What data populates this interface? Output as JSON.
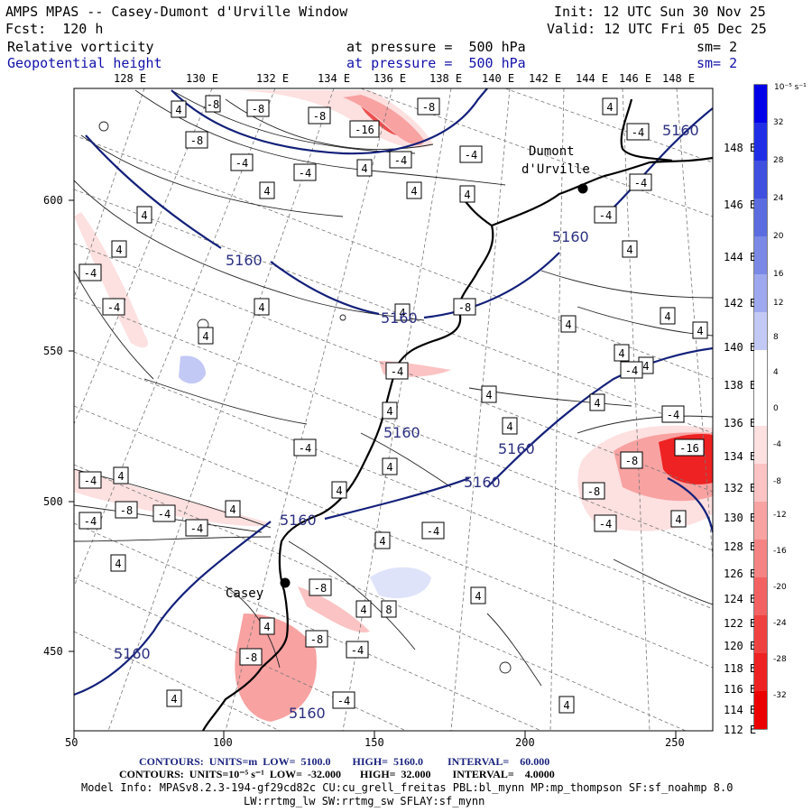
{
  "header": {
    "title": "AMPS MPAS -- Casey-Dumont d'Urville Window",
    "forecast": "Fcst:  120 h",
    "init": "Init: 12 UTC Sun 30 Nov 25",
    "valid": "Valid: 12 UTC Fri 05 Dec 25",
    "field1_name": "Relative vorticity",
    "field1_level": "at pressure =  500 hPa",
    "field1_sm": "sm= 2",
    "field2_name": "Geopotential height",
    "field2_level": "at pressure =  500 hPa",
    "field2_sm": "sm= 2"
  },
  "axes": {
    "top_lon_labels": [
      "128 E",
      "130 E",
      "132 E",
      "134 E",
      "136 E",
      "138 E",
      "140 E",
      "142 E",
      "144 E",
      "146 E",
      "148 E"
    ],
    "right_lon_labels": [
      "148 E",
      "146 E",
      "144 E",
      "142 E",
      "140 E",
      "138 E",
      "136 E",
      "134 E",
      "132 E",
      "130 E",
      "128 E",
      "126 E",
      "124 E",
      "122 E",
      "120 E",
      "118 E",
      "116 E",
      "114 E",
      "112 E"
    ],
    "x_ticks": [
      "50",
      "100",
      "150",
      "200",
      "250"
    ],
    "y_ticks": [
      "600",
      "550",
      "500",
      "450"
    ]
  },
  "stations": {
    "dumont_line1": "Dumont",
    "dumont_line2": "d'Urville",
    "casey": "Casey"
  },
  "height_contours": [
    "5160",
    "5160",
    "5160",
    "5160",
    "5160",
    "5160",
    "5160",
    "5160",
    "5160",
    "5160"
  ],
  "vorticity_labels": [
    "4",
    "-8",
    "-8",
    "-8",
    "-16",
    "-8",
    "-4",
    "-8",
    "4",
    "-4",
    "-4",
    "-4",
    "4",
    "-4",
    "4",
    "4",
    "4",
    "-4",
    "4",
    "-4",
    "4",
    "4",
    "4",
    "-8",
    "4",
    "-4",
    "-4",
    "4",
    "4",
    "4",
    "4",
    "-4",
    "4",
    "4",
    "4",
    "-4",
    "4",
    "-4",
    "4",
    "-8",
    "4",
    "-4",
    "-4",
    "-8",
    "4",
    "-4",
    "-8",
    "-4",
    "4",
    "-4",
    "4",
    "4",
    "-8",
    "4",
    "8",
    "4",
    "-8",
    "-4",
    "4",
    "4",
    "-4",
    "4",
    "4",
    "4",
    "-16",
    "-8",
    "-4",
    "-4",
    "4"
  ],
  "colorbar": {
    "units": "10⁻⁵ s⁻¹",
    "labels": [
      "32",
      "28",
      "24",
      "20",
      "16",
      "12",
      "8",
      "4",
      "0",
      "-4",
      "-8",
      "-12",
      "-16",
      "-20",
      "-24",
      "-28",
      "-32"
    ],
    "colors": [
      "#0000e8",
      "#1f2ee6",
      "#3f4fdf",
      "#5a6ce0",
      "#7a88e6",
      "#9da8ee",
      "#c3c9f5",
      "#ffffff",
      "#ffffff",
      "#fde0e0",
      "#fbc3c3",
      "#f8a2a2",
      "#f58383",
      "#f36262",
      "#f04141",
      "#ee2222",
      "#ec0000"
    ]
  },
  "footer": {
    "line1": "CONTOURS:  UNITS=m  LOW=  5100.0        HIGH=  5160.0         INTERVAL=    60.000",
    "line2": "CONTOURS:  UNITS=10⁻⁵ s⁻¹  LOW=  -32.000       HIGH=  32.000        INTERVAL=    4.0000",
    "line3": "Model Info: MPASv8.2.3-194-gf29cd82c CU:cu_grell_freitas PBL:bl_mynn MP:mp_thompson SF:sf_noahmp 8.0",
    "line4": "LW:rrtmg_lw SW:rrtmg_sw SFLAY:sf_mynn"
  }
}
